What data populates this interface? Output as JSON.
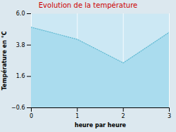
{
  "chart_data": {
    "type": "area",
    "title": "Evolution de la température",
    "xlabel": "heure par heure",
    "ylabel": "Température en °C",
    "x": [
      0,
      1,
      2,
      3
    ],
    "values": [
      5.05,
      4.2,
      2.55,
      4.7
    ],
    "color": "#aadcee",
    "line_style": "dotted",
    "xlim": [
      0,
      3
    ],
    "xticks": [
      0,
      1,
      2,
      3
    ],
    "ylim": [
      -0.6,
      6.0
    ],
    "yticks": [
      -0.6,
      1.6,
      3.8,
      {
        "value": 6.0,
        "label": "6.0"
      }
    ],
    "grid": "x"
  }
}
